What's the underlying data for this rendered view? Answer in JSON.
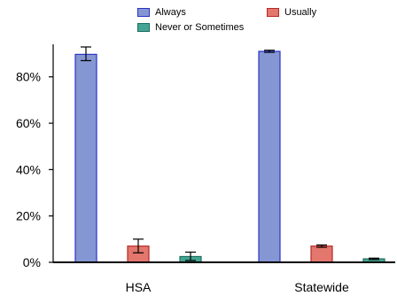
{
  "chart_data": {
    "type": "bar",
    "categories": [
      "HSA",
      "Statewide"
    ],
    "series": [
      {
        "name": "Always",
        "values": [
          89.7,
          91.0
        ],
        "err_low": [
          87.0,
          90.6
        ],
        "err_high": [
          92.9,
          91.5
        ],
        "fill": "#8497d2",
        "stroke": "#2b32c8"
      },
      {
        "name": "Usually",
        "values": [
          7.0,
          7.0
        ],
        "err_low": [
          4.1,
          6.5
        ],
        "err_high": [
          10.0,
          7.5
        ],
        "fill": "#e3766d",
        "stroke": "#b52a25"
      },
      {
        "name": "Never or Sometimes",
        "values": [
          2.5,
          1.5
        ],
        "err_low": [
          0.8,
          1.2
        ],
        "err_high": [
          4.4,
          1.8
        ],
        "fill": "#45a592",
        "stroke": "#1d6e62"
      }
    ],
    "ylim": [
      0,
      95
    ],
    "yticks": [
      0,
      20,
      40,
      60,
      80
    ],
    "ytick_labels": [
      "0%",
      "20%",
      "40%",
      "60%",
      "80%"
    ],
    "legend_position": "top",
    "grid": false
  }
}
